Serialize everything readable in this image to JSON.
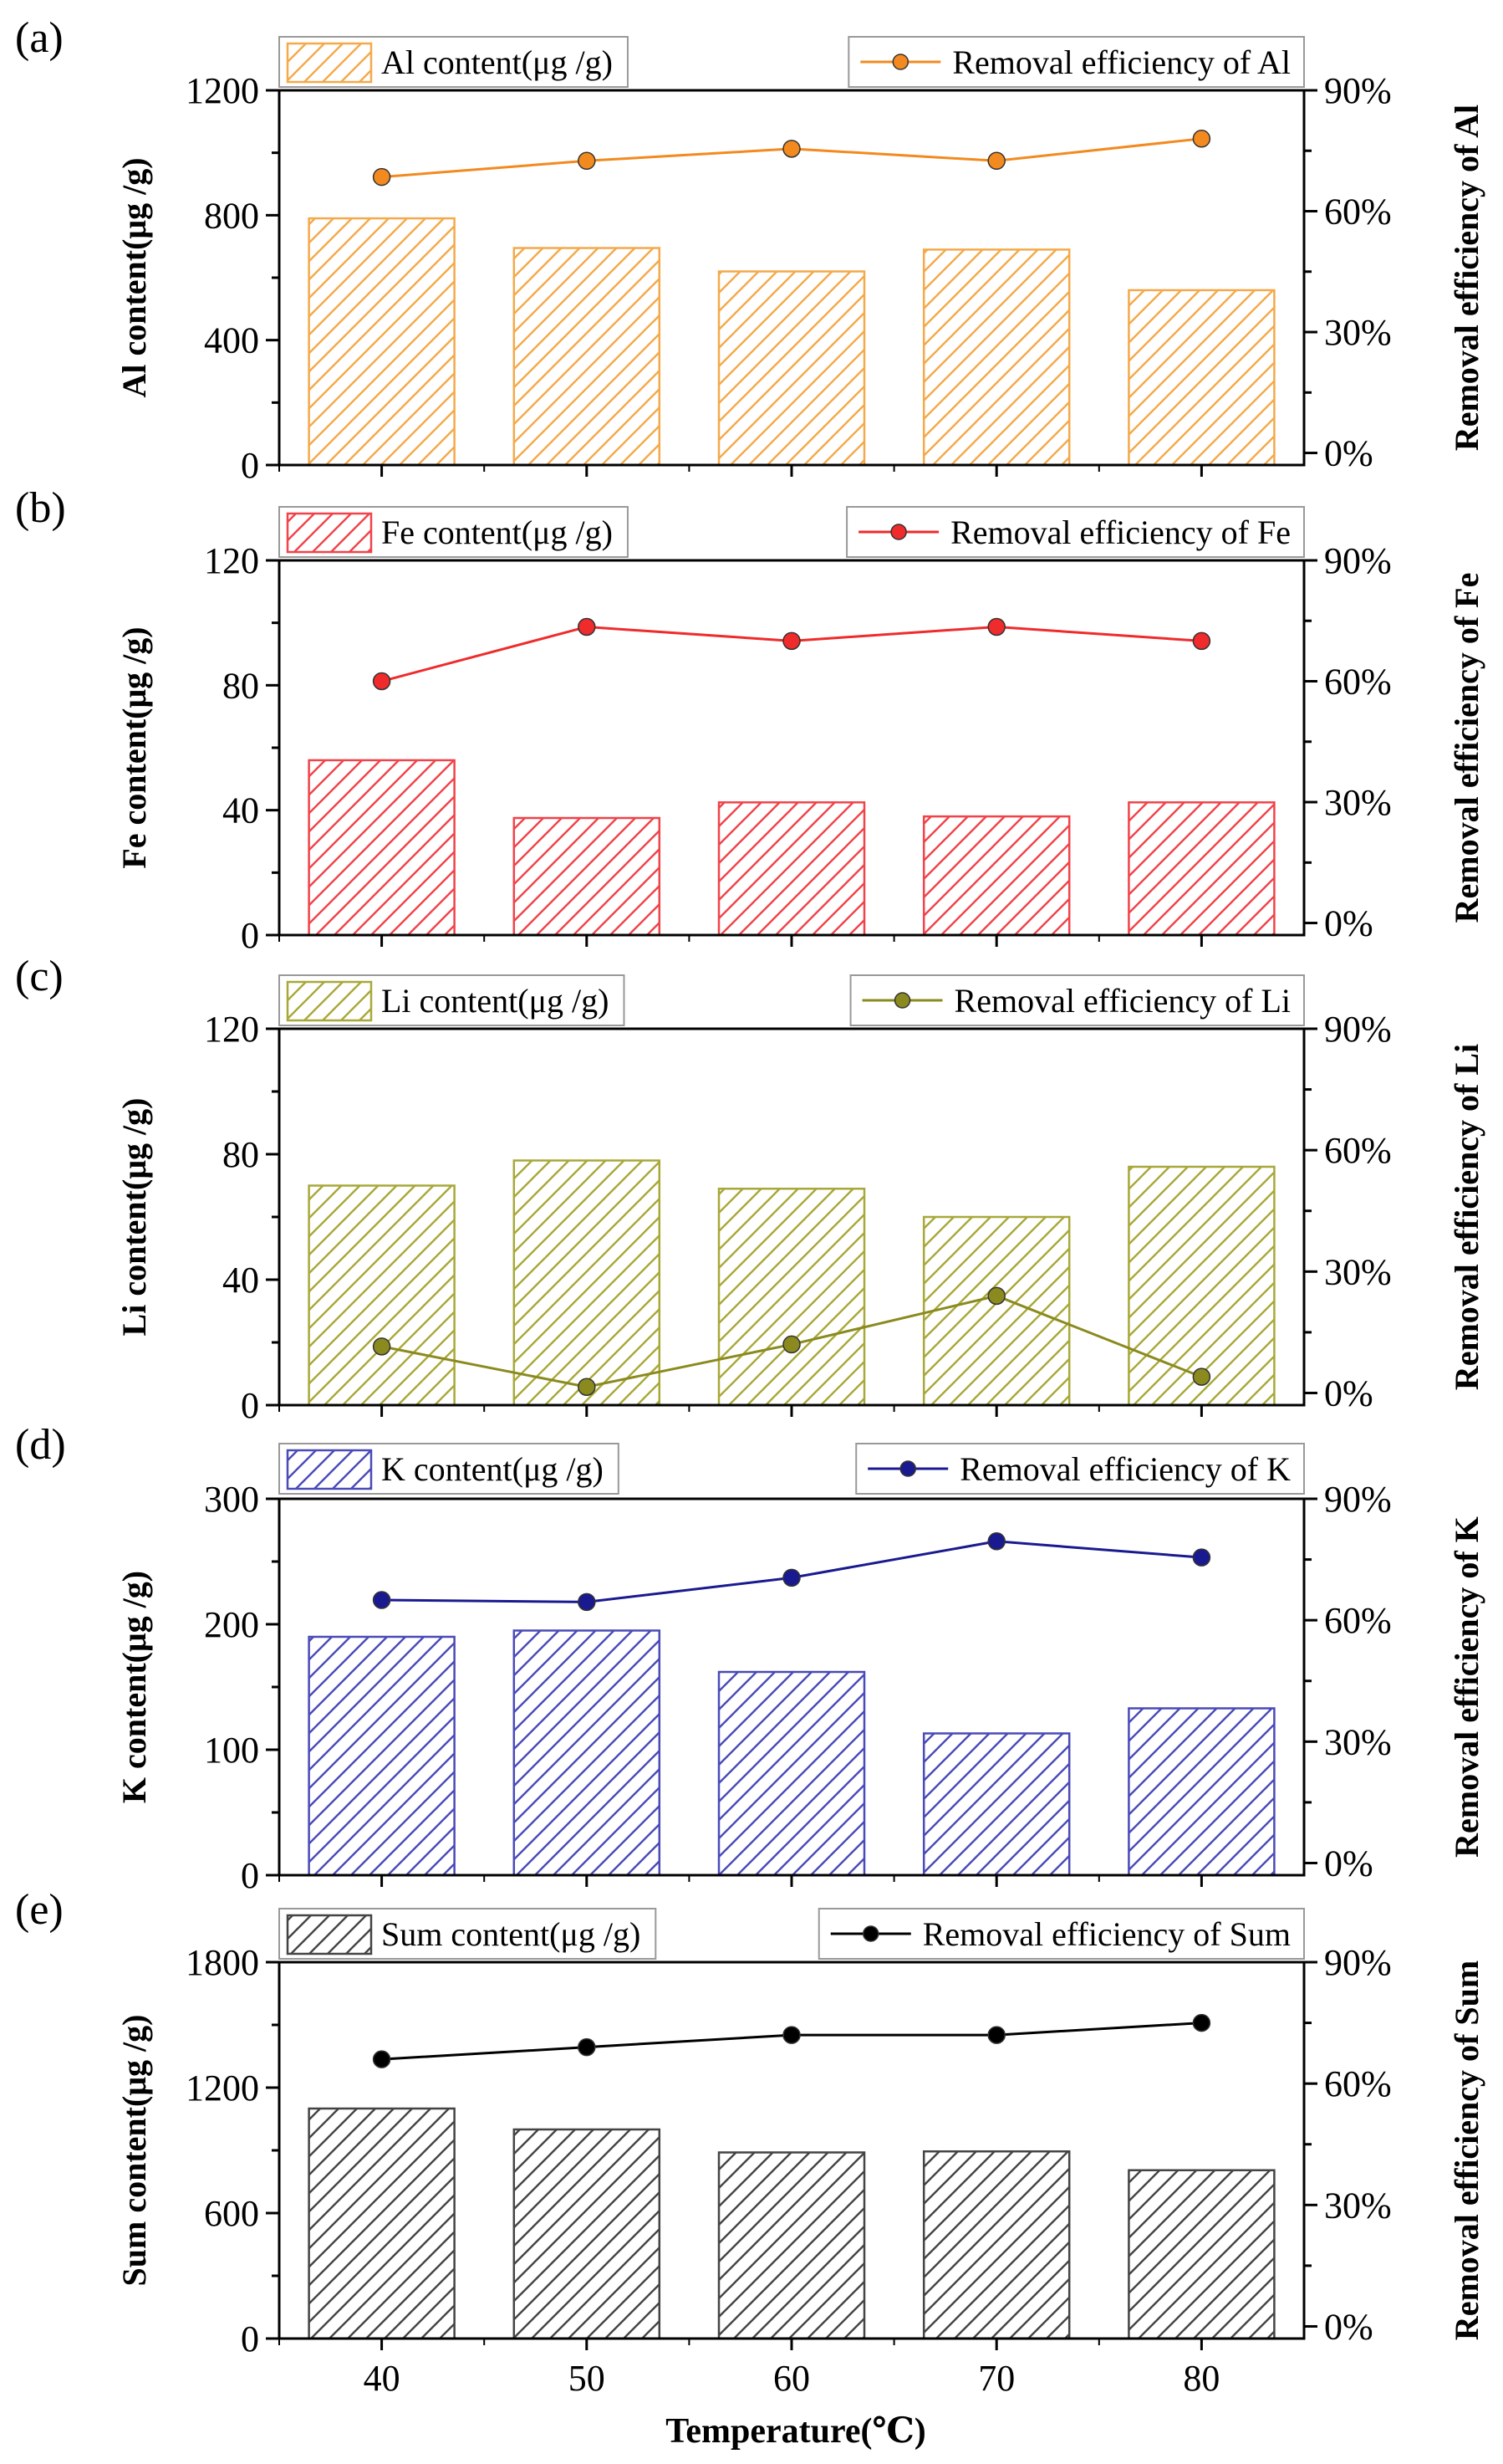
{
  "chart_data": [
    {
      "type": "bar+line",
      "tag": "(a)",
      "categories": [
        "40",
        "50",
        "60",
        "70",
        "80"
      ],
      "bar_series": {
        "name": "Al content(μg /g)",
        "values": [
          790,
          695,
          620,
          690,
          560
        ],
        "color": "#f4a94a"
      },
      "line_series": {
        "name": "Removal efficiency of Al",
        "values": [
          68.5,
          72.5,
          75.5,
          72.5,
          78
        ],
        "color": "#f28a1f"
      },
      "ylabel": "Al content(μg /g)",
      "ylim": [
        0,
        1200
      ],
      "yticks": [
        "0",
        "400",
        "800",
        "1200"
      ],
      "ytick_values": [
        0,
        400,
        800,
        1200
      ],
      "y2label": "Removal efficiency of Al",
      "y2lim": [
        -3,
        90
      ],
      "y2ticks": [
        "0%",
        "30%",
        "60%",
        "90%"
      ],
      "y2tick_values": [
        0,
        30,
        60,
        90
      ]
    },
    {
      "type": "bar+line",
      "tag": "(b)",
      "categories": [
        "40",
        "50",
        "60",
        "70",
        "80"
      ],
      "bar_series": {
        "name": "Fe content(μg /g)",
        "values": [
          56,
          37.5,
          42.5,
          38,
          42.5
        ],
        "color": "#f0434a"
      },
      "line_series": {
        "name": "Removal efficiency of Fe",
        "values": [
          60,
          73.5,
          70,
          73.5,
          70
        ],
        "color": "#ef2b2b"
      },
      "ylabel": "Fe content(μg /g)",
      "ylim": [
        0,
        120
      ],
      "yticks": [
        "0",
        "40",
        "80",
        "120"
      ],
      "ytick_values": [
        0,
        40,
        80,
        120
      ],
      "y2label": "Removal efficiency of Fe",
      "y2lim": [
        -3,
        90
      ],
      "y2ticks": [
        "0%",
        "30%",
        "60%",
        "90%"
      ],
      "y2tick_values": [
        0,
        30,
        60,
        90
      ]
    },
    {
      "type": "bar+line",
      "tag": "(c)",
      "categories": [
        "40",
        "50",
        "60",
        "70",
        "80"
      ],
      "bar_series": {
        "name": "Li content(μg /g)",
        "values": [
          70,
          78,
          69,
          60,
          76
        ],
        "color": "#a8a83a"
      },
      "line_series": {
        "name": "Removal efficiency of Li",
        "values": [
          11.5,
          1.5,
          12,
          24,
          4
        ],
        "color": "#8a8a1e"
      },
      "ylabel": "Li content(μg /g)",
      "ylim": [
        0,
        120
      ],
      "yticks": [
        "0",
        "40",
        "80",
        "120"
      ],
      "ytick_values": [
        0,
        40,
        80,
        120
      ],
      "y2label": "Removal efficiency of Li",
      "y2lim": [
        -3,
        90
      ],
      "y2ticks": [
        "0%",
        "30%",
        "60%",
        "90%"
      ],
      "y2tick_values": [
        0,
        30,
        60,
        90
      ]
    },
    {
      "type": "bar+line",
      "tag": "(d)",
      "categories": [
        "40",
        "50",
        "60",
        "70",
        "80"
      ],
      "bar_series": {
        "name": "K content(μg /g)",
        "values": [
          190,
          195,
          162,
          113,
          133
        ],
        "color": "#4a4ab8"
      },
      "line_series": {
        "name": "Removal efficiency of K",
        "values": [
          65,
          64.5,
          70.5,
          79.5,
          75.5
        ],
        "color": "#1a1a90"
      },
      "ylabel": "K content(μg /g)",
      "ylim": [
        0,
        300
      ],
      "yticks": [
        "0",
        "100",
        "200",
        "300"
      ],
      "ytick_values": [
        0,
        100,
        200,
        300
      ],
      "y2label": "Removal efficiency of K",
      "y2lim": [
        -3,
        90
      ],
      "y2ticks": [
        "0%",
        "30%",
        "60%",
        "90%"
      ],
      "y2tick_values": [
        0,
        30,
        60,
        90
      ]
    },
    {
      "type": "bar+line",
      "tag": "(e)",
      "categories": [
        "40",
        "50",
        "60",
        "70",
        "80"
      ],
      "bar_series": {
        "name": "Sum content(μg /g)",
        "values": [
          1100,
          1000,
          890,
          895,
          805
        ],
        "color": "#444444"
      },
      "line_series": {
        "name": "Removal efficiency of Sum",
        "values": [
          66,
          69,
          72,
          72,
          75
        ],
        "color": "#000000"
      },
      "ylabel": "Sum content(μg /g)",
      "ylim": [
        0,
        1800
      ],
      "yticks": [
        "0",
        "600",
        "1200",
        "1800"
      ],
      "ytick_values": [
        0,
        600,
        1200,
        1800
      ],
      "y2label": "Removal efficiency of Sum",
      "y2lim": [
        -3,
        90
      ],
      "y2ticks": [
        "0%",
        "30%",
        "60%",
        "90%"
      ],
      "y2tick_values": [
        0,
        30,
        60,
        90
      ]
    }
  ],
  "xlabel": "Temperature(℃)"
}
